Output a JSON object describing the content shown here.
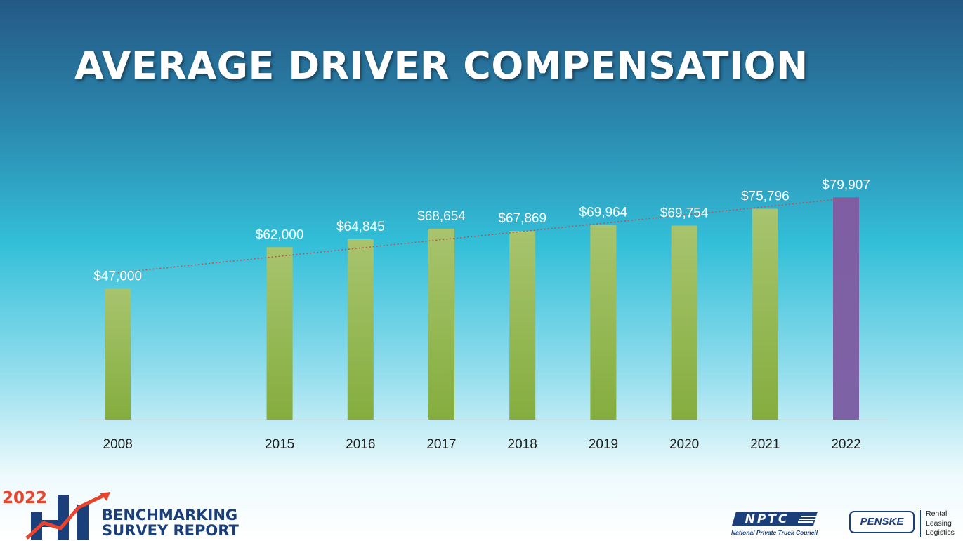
{
  "title": "AVERAGE DRIVER COMPENSATION",
  "chart_data": {
    "type": "bar",
    "title": "AVERAGE DRIVER COMPENSATION",
    "categories": [
      "2008",
      "2015",
      "2016",
      "2017",
      "2018",
      "2019",
      "2020",
      "2021",
      "2022"
    ],
    "values": [
      47000,
      62000,
      64845,
      68654,
      67869,
      69964,
      69754,
      75796,
      79907
    ],
    "labels": [
      "$47,000",
      "$62,000",
      "$64,845",
      "$68,654",
      "$67,869",
      "$69,964",
      "$69,754",
      "$75,796",
      "$79,907"
    ],
    "ylim": [
      0,
      110000
    ],
    "trendline": "linear",
    "colors": {
      "bar": "#8db550",
      "bar_highlight": "#7e5fa1",
      "trendline": "#c0504d"
    },
    "highlight_category": "2022",
    "grid": false
  },
  "footer": {
    "year": "2022",
    "brand_line1": "BENCHMARKING",
    "brand_line2": "SURVEY REPORT",
    "nptc_logo": "NPTC",
    "nptc_tagline": "National Private Truck Council",
    "penske_logo": "PENSKE",
    "penske_services": [
      "Rental",
      "Leasing",
      "Logistics"
    ]
  }
}
